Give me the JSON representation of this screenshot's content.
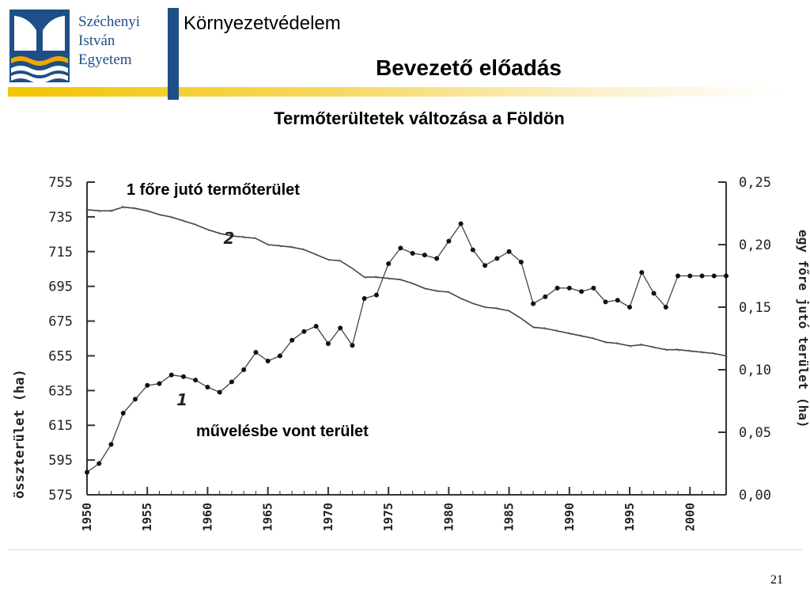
{
  "header": {
    "logo_lines": [
      "Széchenyi",
      "István",
      "Egyetem"
    ],
    "course_title": "Környezetvédelem",
    "lecture_title": "Bevezető előadás"
  },
  "slide": {
    "subtitle": "Termőterültetek változása a Földön",
    "page_number": "21"
  },
  "colors": {
    "brand_blue": "#1e4f86",
    "brand_yellow": "#f3c400",
    "logo_orange": "#f2a900"
  },
  "chart_data": {
    "type": "line",
    "x": [
      1950,
      1951,
      1952,
      1953,
      1954,
      1955,
      1956,
      1957,
      1958,
      1959,
      1960,
      1961,
      1962,
      1963,
      1964,
      1965,
      1966,
      1967,
      1968,
      1969,
      1970,
      1971,
      1972,
      1973,
      1974,
      1975,
      1976,
      1977,
      1978,
      1979,
      1980,
      1981,
      1982,
      1983,
      1984,
      1985,
      1986,
      1987,
      1988,
      1989,
      1990,
      1991,
      1992,
      1993,
      1994,
      1995,
      1996,
      1997,
      1998,
      1999,
      2000,
      2001,
      2002,
      2003
    ],
    "xlim": [
      1950,
      2003
    ],
    "xticks": [
      1950,
      1955,
      1960,
      1965,
      1970,
      1975,
      1980,
      1985,
      1990,
      1995,
      2000
    ],
    "xtick_labels": [
      "1950",
      "1955",
      "1960",
      "1965",
      "1970",
      "1975",
      "1980",
      "1985",
      "1990",
      "1995",
      "2000"
    ],
    "y_left": {
      "label": "összterület (ha)",
      "ylim": [
        575,
        755
      ],
      "ticks": [
        575,
        595,
        615,
        635,
        655,
        675,
        695,
        715,
        735,
        755
      ],
      "tick_labels": [
        "575",
        "595",
        "615",
        "635",
        "655",
        "675",
        "695",
        "715",
        "735",
        "755"
      ]
    },
    "y_right": {
      "label": "egy főre jutó terület (ha)",
      "ylim": [
        0,
        0.25
      ],
      "ticks": [
        0,
        0.05,
        0.1,
        0.15,
        0.2,
        0.25
      ],
      "tick_labels": [
        "0,00",
        "0,05",
        "0,10",
        "0,15",
        "0,20",
        "0,25"
      ]
    },
    "series": [
      {
        "name": "1",
        "axis": "left",
        "values": [
          588,
          593,
          604,
          622,
          630,
          638,
          639,
          644,
          643,
          641,
          637,
          634,
          640,
          647,
          657,
          652,
          655,
          664,
          669,
          672,
          662,
          671,
          661,
          688,
          690,
          708,
          717,
          714,
          713,
          711,
          721,
          731,
          716,
          707,
          711,
          715,
          709,
          685,
          689,
          694,
          694,
          692,
          694,
          686,
          687,
          683,
          703,
          691,
          683,
          701,
          701,
          701,
          701,
          701
        ]
      },
      {
        "name": "2",
        "axis": "right",
        "values": [
          0.228,
          0.227,
          0.227,
          0.23,
          0.229,
          0.227,
          0.224,
          0.222,
          0.219,
          0.216,
          0.212,
          0.209,
          0.207,
          0.206,
          0.205,
          0.2,
          0.199,
          0.198,
          0.196,
          0.192,
          0.188,
          0.187,
          0.181,
          0.174,
          0.174,
          0.173,
          0.172,
          0.169,
          0.165,
          0.163,
          0.162,
          0.157,
          0.153,
          0.15,
          0.149,
          0.147,
          0.141,
          0.134,
          0.133,
          0.131,
          0.129,
          0.127,
          0.125,
          0.122,
          0.121,
          0.119,
          0.12,
          0.118,
          0.116,
          0.116,
          0.115,
          0.114,
          0.113,
          0.111
        ]
      }
    ],
    "annotations": [
      "1 főre jutó termőterület",
      "művelésbe vont terület"
    ],
    "grid": false
  }
}
